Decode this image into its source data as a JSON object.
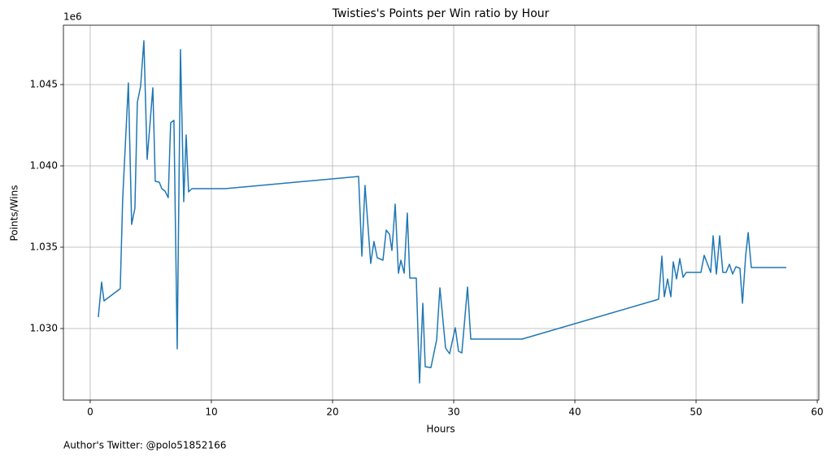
{
  "chart_data": {
    "type": "line",
    "title": "Twisties's Points per Win ratio by Hour",
    "x_label": "Hours",
    "y_label": "Points/Wins",
    "y_offset_label": "1e6",
    "footnote": "Author's Twitter: @polo51852166",
    "x": [
      0.67,
      0.94,
      1.14,
      2.48,
      2.68,
      3.15,
      3.42,
      3.69,
      3.89,
      4.16,
      4.43,
      4.7,
      5.17,
      5.37,
      5.7,
      5.91,
      6.17,
      6.44,
      6.64,
      6.91,
      7.18,
      7.45,
      7.72,
      7.92,
      8.12,
      8.39,
      11.14,
      22.15,
      22.42,
      22.68,
      23.15,
      23.42,
      23.69,
      24.16,
      24.43,
      24.7,
      24.9,
      25.17,
      25.44,
      25.64,
      25.91,
      26.17,
      26.38,
      26.91,
      27.18,
      27.45,
      27.65,
      28.12,
      28.59,
      28.86,
      29.33,
      29.66,
      30.13,
      30.4,
      30.67,
      31.14,
      31.41,
      35.64,
      46.91,
      47.18,
      47.38,
      47.65,
      47.92,
      48.12,
      48.39,
      48.66,
      48.93,
      49.19,
      50.4,
      50.67,
      51.21,
      51.41,
      51.68,
      51.95,
      52.21,
      52.48,
      52.75,
      53.02,
      53.29,
      53.62,
      53.83,
      54.09,
      54.3,
      54.56,
      57.45
    ],
    "series": [
      {
        "name": "Points/Wins",
        "color": "#1f77b4",
        "values": [
          1.0307,
          1.03285,
          1.0317,
          1.03245,
          1.03795,
          1.0451,
          1.0364,
          1.0374,
          1.0439,
          1.0449,
          1.0477,
          1.0404,
          1.0448,
          1.03905,
          1.039,
          1.0386,
          1.03845,
          1.03805,
          1.04265,
          1.0428,
          1.02875,
          1.04715,
          1.0378,
          1.0419,
          1.0384,
          1.0386,
          1.0386,
          1.03935,
          1.03445,
          1.0388,
          1.034,
          1.03535,
          1.03435,
          1.0342,
          1.03605,
          1.0358,
          1.0348,
          1.03765,
          1.0334,
          1.0342,
          1.0334,
          1.0371,
          1.0331,
          1.0331,
          1.02665,
          1.03155,
          1.02765,
          1.0276,
          1.0293,
          1.0325,
          1.0288,
          1.02845,
          1.03005,
          1.0286,
          1.0285,
          1.03255,
          1.02935,
          1.02935,
          1.0318,
          1.03445,
          1.03195,
          1.03305,
          1.03195,
          1.0341,
          1.03305,
          1.0343,
          1.03315,
          1.03345,
          1.03345,
          1.0345,
          1.03345,
          1.0357,
          1.03335,
          1.0357,
          1.03345,
          1.03345,
          1.03395,
          1.03335,
          1.0338,
          1.0337,
          1.03155,
          1.03445,
          1.0359,
          1.03375,
          1.03375
        ]
      }
    ],
    "xlim": [
      -2.21,
      60.13
    ],
    "ylim": [
      1.0256,
      1.04865
    ],
    "xticks": [
      0,
      10,
      20,
      30,
      40,
      50,
      60
    ],
    "yticks": [
      {
        "value": 1.03,
        "label": "1.030"
      },
      {
        "value": 1.035,
        "label": "1.035"
      },
      {
        "value": 1.04,
        "label": "1.040"
      },
      {
        "value": 1.045,
        "label": "1.045"
      }
    ],
    "grid": true
  }
}
